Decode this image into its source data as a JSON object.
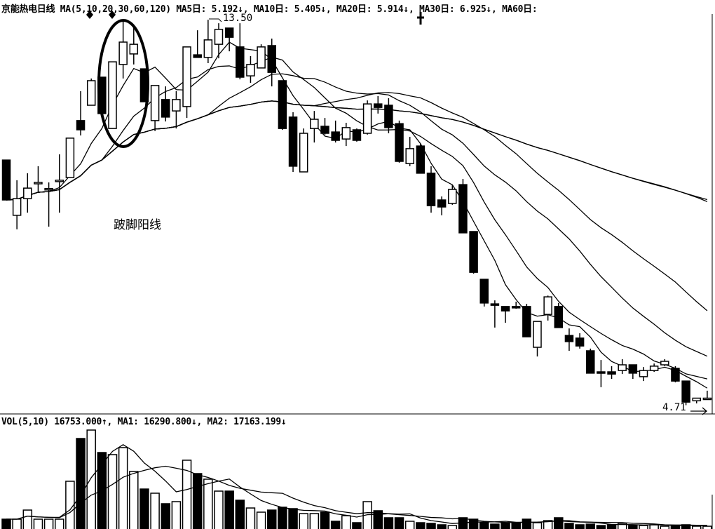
{
  "header": {
    "price": "京能热电日线 MA(5,10,20,30,60,120) MA5日: 5.192↓, MA10日: 5.405↓, MA20日: 5.914↓, MA30日: 6.925↓, MA60日:",
    "volume": "VOL(5,10) 16753.000↑, MA1: 16290.800↓, MA2: 17163.199↓"
  },
  "annotations": {
    "pattern_label": "跛脚阳线",
    "high_label": "13.50",
    "low_label": "4.71"
  },
  "colors": {
    "up": "#ffffff",
    "down": "#000000",
    "line": "#000000",
    "background": "#ffffff"
  },
  "chart_data": [
    {
      "type": "candlestick",
      "title": "京能热电日线",
      "moving_averages": [
        5,
        10,
        20,
        30,
        60,
        120
      ],
      "high": 13.5,
      "low": 4.71,
      "candles": [
        [
          10.3,
          10.3,
          9.39,
          9.39
        ],
        [
          9.04,
          9.84,
          8.72,
          9.42
        ],
        [
          9.42,
          10.0,
          9.1,
          9.66
        ],
        [
          9.77,
          10.16,
          9.58,
          9.79
        ],
        [
          9.63,
          9.79,
          8.78,
          9.65
        ],
        [
          9.82,
          10.43,
          9.1,
          9.84
        ],
        [
          9.9,
          10.8,
          9.9,
          10.8
        ],
        [
          11.2,
          11.87,
          10.86,
          10.99
        ],
        [
          11.55,
          12.16,
          11.55,
          12.11
        ],
        [
          12.19,
          12.19,
          11.31,
          11.36
        ],
        [
          11.02,
          12.54,
          11.02,
          12.54
        ],
        [
          12.48,
          13.47,
          12.16,
          12.99
        ],
        [
          12.72,
          13.39,
          12.48,
          12.94
        ],
        [
          12.38,
          12.38,
          11.63,
          11.63
        ],
        [
          11.2,
          12.0,
          10.96,
          12.0
        ],
        [
          11.68,
          11.98,
          11.18,
          11.28
        ],
        [
          11.42,
          11.87,
          11.02,
          11.68
        ],
        [
          11.52,
          12.88,
          11.26,
          12.88
        ],
        [
          12.7,
          13.26,
          12.64,
          12.64
        ],
        [
          12.64,
          13.5,
          12.51,
          13.04
        ],
        [
          12.94,
          13.42,
          12.62,
          13.28
        ],
        [
          13.31,
          13.31,
          12.78,
          13.1
        ],
        [
          12.88,
          13.42,
          12.14,
          12.19
        ],
        [
          12.22,
          12.67,
          12.06,
          12.48
        ],
        [
          12.4,
          12.94,
          12.4,
          12.88
        ],
        [
          12.91,
          13.07,
          11.98,
          12.3
        ],
        [
          12.11,
          12.11,
          10.99,
          11.02
        ],
        [
          11.28,
          11.39,
          10.03,
          10.16
        ],
        [
          10.03,
          11.02,
          10.03,
          10.91
        ],
        [
          11.02,
          11.42,
          10.7,
          11.23
        ],
        [
          11.07,
          11.26,
          10.88,
          10.91
        ],
        [
          10.94,
          11.2,
          10.7,
          10.75
        ],
        [
          10.78,
          11.15,
          10.62,
          11.04
        ],
        [
          10.99,
          11.02,
          10.72,
          10.75
        ],
        [
          10.91,
          11.66,
          10.88,
          11.58
        ],
        [
          11.58,
          11.76,
          11.36,
          11.5
        ],
        [
          11.55,
          11.71,
          10.91,
          11.04
        ],
        [
          11.13,
          11.2,
          10.24,
          10.27
        ],
        [
          10.22,
          10.83,
          10.16,
          10.56
        ],
        [
          10.62,
          10.67,
          10.0,
          10.0
        ],
        [
          10.0,
          10.16,
          9.1,
          9.26
        ],
        [
          9.39,
          9.47,
          9.04,
          9.23
        ],
        [
          9.31,
          9.74,
          9.28,
          9.63
        ],
        [
          9.74,
          9.87,
          8.64,
          8.64
        ],
        [
          8.67,
          8.67,
          7.71,
          7.74
        ],
        [
          7.58,
          7.58,
          6.96,
          7.04
        ],
        [
          7.02,
          7.1,
          6.48,
          7.01
        ],
        [
          6.96,
          6.96,
          6.59,
          6.86
        ],
        [
          6.96,
          7.07,
          6.91,
          6.94
        ],
        [
          6.96,
          7.02,
          6.27,
          6.27
        ],
        [
          6.03,
          6.62,
          5.82,
          6.62
        ],
        [
          6.78,
          7.21,
          6.64,
          7.18
        ],
        [
          6.96,
          7.04,
          6.48,
          6.48
        ],
        [
          6.3,
          6.46,
          5.95,
          6.16
        ],
        [
          6.24,
          6.35,
          6.0,
          6.06
        ],
        [
          5.95,
          6.0,
          5.44,
          5.44
        ],
        [
          5.47,
          5.74,
          5.12,
          5.45
        ],
        [
          5.47,
          5.6,
          5.31,
          5.42
        ],
        [
          5.5,
          5.76,
          5.42,
          5.63
        ],
        [
          5.63,
          5.63,
          5.31,
          5.44
        ],
        [
          5.36,
          5.58,
          5.26,
          5.5
        ],
        [
          5.5,
          5.66,
          5.47,
          5.6
        ],
        [
          5.63,
          5.76,
          5.6,
          5.71
        ],
        [
          5.55,
          5.6,
          5.23,
          5.26
        ],
        [
          5.26,
          5.26,
          4.71,
          4.78
        ],
        [
          4.81,
          4.87,
          4.75,
          4.87
        ],
        [
          4.86,
          5.04,
          4.83,
          4.87
        ]
      ],
      "candle_fields": [
        "open",
        "high",
        "low",
        "close"
      ]
    },
    {
      "type": "bar",
      "title": "VOL",
      "moving_averages": [
        5,
        10
      ],
      "values": [
        25200,
        25200,
        36100,
        25200,
        25200,
        25200,
        70600,
        121800,
        131900,
        105000,
        102500,
        110900,
        82300,
        61300,
        56300,
        43700,
        46200,
        95800,
        79800,
        73100,
        58800,
        58800,
        47900,
        38600,
        33600,
        36100,
        39500,
        37800,
        31900,
        31900,
        33600,
        22700,
        29400,
        21000,
        46200,
        35300,
        26900,
        26900,
        22700,
        21000,
        20200,
        18500,
        17600,
        26900,
        25200,
        21000,
        19300,
        21000,
        21000,
        25200,
        21000,
        23500,
        26900,
        20200,
        18500,
        19300,
        17600,
        18500,
        20200,
        17600,
        17600,
        18500,
        16800,
        17600,
        18500,
        16800,
        16753
      ]
    }
  ]
}
